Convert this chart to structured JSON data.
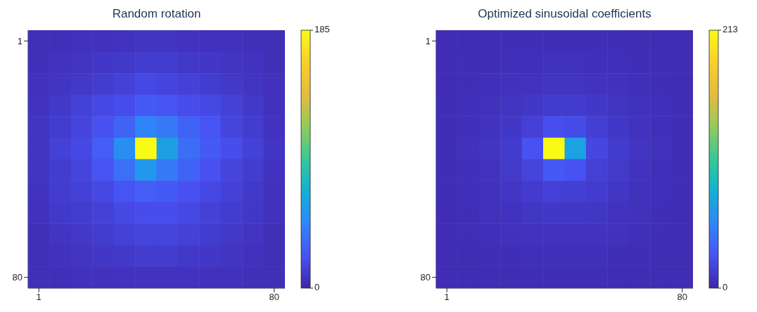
{
  "chart_data": [
    {
      "type": "heatmap",
      "title": "Random rotation",
      "categories": [
        "1",
        null,
        null,
        null,
        null,
        null,
        null,
        null,
        null,
        null,
        null,
        "80"
      ],
      "y_categories": [
        "1",
        null,
        null,
        null,
        null,
        null,
        null,
        null,
        null,
        null,
        null,
        "80"
      ],
      "cells": [
        [
          5,
          5,
          6,
          6,
          7,
          8,
          8,
          7,
          6,
          6,
          5,
          5
        ],
        [
          5,
          7,
          8,
          9,
          10,
          12,
          12,
          10,
          9,
          8,
          7,
          5
        ],
        [
          6,
          8,
          10,
          12,
          14,
          18,
          16,
          14,
          12,
          10,
          8,
          6
        ],
        [
          7,
          10,
          14,
          18,
          20,
          26,
          24,
          20,
          18,
          14,
          10,
          6
        ],
        [
          8,
          12,
          16,
          22,
          30,
          45,
          40,
          30,
          24,
          16,
          12,
          7
        ],
        [
          8,
          14,
          18,
          28,
          50,
          185,
          60,
          35,
          26,
          20,
          14,
          8
        ],
        [
          8,
          12,
          16,
          24,
          36,
          55,
          40,
          30,
          22,
          16,
          12,
          7
        ],
        [
          7,
          12,
          14,
          18,
          24,
          28,
          26,
          22,
          18,
          14,
          10,
          6
        ],
        [
          6,
          10,
          12,
          14,
          18,
          20,
          20,
          18,
          14,
          12,
          9,
          6
        ],
        [
          5,
          8,
          10,
          12,
          14,
          16,
          16,
          14,
          12,
          10,
          8,
          5
        ],
        [
          5,
          6,
          8,
          9,
          10,
          12,
          12,
          10,
          9,
          8,
          6,
          5
        ],
        [
          5,
          5,
          6,
          6,
          7,
          7,
          7,
          7,
          6,
          6,
          5,
          5
        ]
      ],
      "clim": [
        0,
        185
      ],
      "cticks": [
        0,
        185
      ]
    },
    {
      "type": "heatmap",
      "title": "Optimized sinusoidal coefficients",
      "categories": [
        "1",
        null,
        null,
        null,
        null,
        null,
        null,
        null,
        null,
        null,
        null,
        "80"
      ],
      "y_categories": [
        "1",
        null,
        null,
        null,
        null,
        null,
        null,
        null,
        null,
        null,
        null,
        "80"
      ],
      "cells": [
        [
          4,
          4,
          4,
          5,
          5,
          5,
          5,
          5,
          5,
          4,
          4,
          4
        ],
        [
          4,
          5,
          5,
          6,
          6,
          7,
          7,
          6,
          6,
          5,
          5,
          4
        ],
        [
          4,
          5,
          6,
          7,
          8,
          9,
          9,
          8,
          7,
          6,
          5,
          4
        ],
        [
          5,
          6,
          7,
          9,
          11,
          13,
          13,
          11,
          9,
          7,
          6,
          5
        ],
        [
          5,
          6,
          8,
          11,
          16,
          24,
          22,
          15,
          11,
          8,
          6,
          5
        ],
        [
          5,
          7,
          9,
          13,
          26,
          213,
          70,
          20,
          13,
          9,
          7,
          5
        ],
        [
          5,
          6,
          8,
          12,
          18,
          30,
          26,
          16,
          12,
          8,
          6,
          5
        ],
        [
          5,
          6,
          7,
          10,
          13,
          16,
          15,
          13,
          10,
          7,
          6,
          5
        ],
        [
          4,
          5,
          7,
          8,
          10,
          11,
          11,
          10,
          8,
          7,
          5,
          4
        ],
        [
          4,
          5,
          6,
          7,
          8,
          8,
          8,
          8,
          7,
          6,
          5,
          4
        ],
        [
          4,
          4,
          5,
          5,
          6,
          6,
          6,
          6,
          5,
          5,
          4,
          4
        ],
        [
          4,
          4,
          4,
          4,
          5,
          5,
          5,
          5,
          4,
          4,
          4,
          4
        ]
      ],
      "clim": [
        0,
        213
      ],
      "cticks": [
        0,
        213
      ]
    }
  ]
}
